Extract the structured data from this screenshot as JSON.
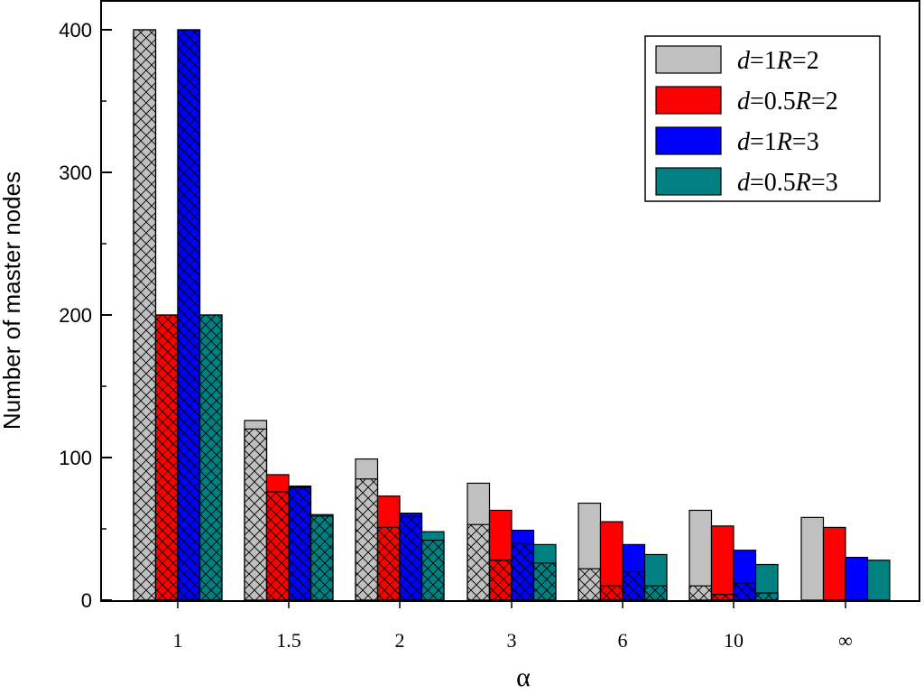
{
  "chart_data": {
    "type": "bar",
    "ylabel": "Number of master nodes",
    "xlabel": "α",
    "ylim": [
      0,
      400
    ],
    "yticks": [
      0,
      100,
      200,
      300,
      400
    ],
    "categories": [
      "1",
      "1.5",
      "2",
      "3",
      "6",
      "10",
      "∞"
    ],
    "legend_position": "top-right",
    "grid": false,
    "series": [
      {
        "name": "d=1R=2",
        "legend": {
          "d": "d",
          "dval": "=1",
          "r": "R",
          "rval": "=2"
        },
        "color": "#c0c0c0",
        "values": [
          400,
          126,
          99,
          82,
          68,
          63,
          58
        ],
        "hatched_values": [
          400,
          120,
          85,
          53,
          22,
          10,
          0
        ]
      },
      {
        "name": "d=0.5R=2",
        "legend": {
          "d": "d",
          "dval": "=0.5",
          "r": "R",
          "rval": "=2"
        },
        "color": "#ff0000",
        "values": [
          200,
          88,
          73,
          63,
          55,
          52,
          51
        ],
        "hatched_values": [
          200,
          76,
          51,
          28,
          10,
          4,
          0
        ]
      },
      {
        "name": "d=1R=3",
        "legend": {
          "d": "d",
          "dval": "=1",
          "r": "R",
          "rval": "=3"
        },
        "color": "#0000ff",
        "values": [
          400,
          80,
          61,
          49,
          39,
          35,
          30
        ],
        "hatched_values": [
          400,
          79,
          59,
          40,
          20,
          12,
          0
        ]
      },
      {
        "name": "d=0.5R=3",
        "legend": {
          "d": "d",
          "dval": "=0.5",
          "r": "R",
          "rval": "=3"
        },
        "color": "#008080",
        "values": [
          200,
          60,
          48,
          39,
          32,
          25,
          28
        ],
        "hatched_values": [
          200,
          59,
          42,
          26,
          10,
          5,
          0
        ]
      }
    ]
  }
}
